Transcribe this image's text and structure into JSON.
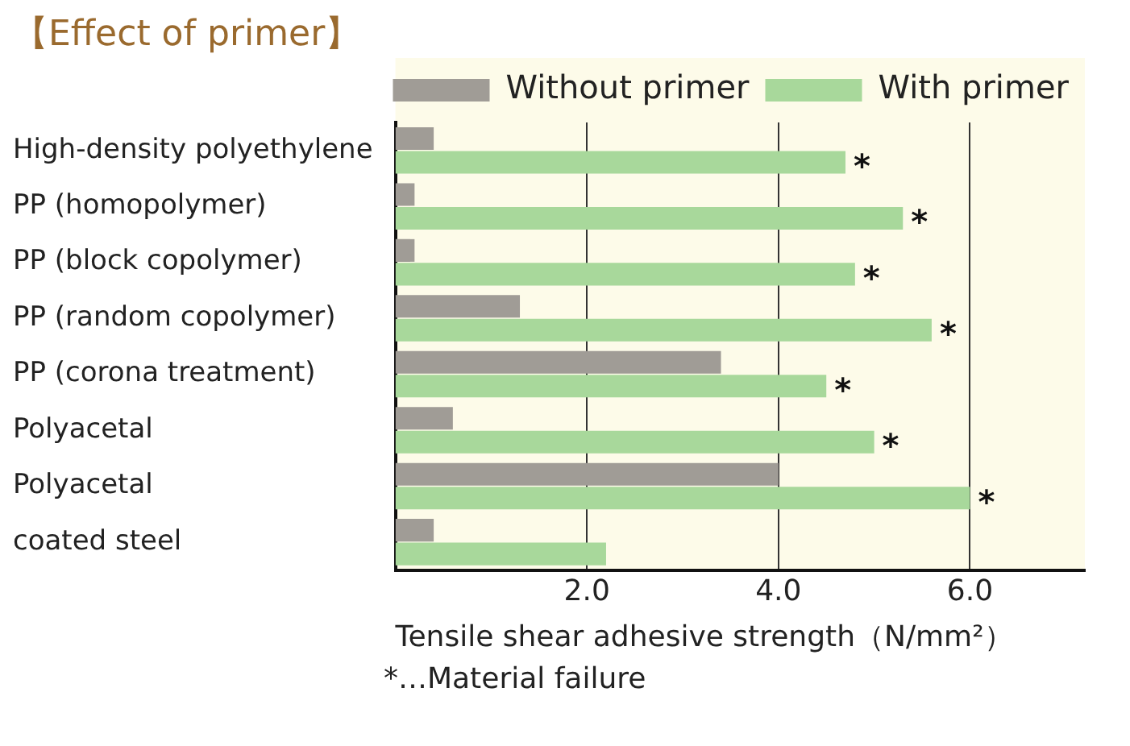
{
  "chart_data": {
    "type": "bar",
    "orientation": "horizontal",
    "title": "【Effect of primer】",
    "xlabel": "Tensile shear adhesive strength（N/mm²）",
    "categories": [
      "High-density polyethylene",
      "PP (homopolymer)",
      "PP (block copolymer)",
      "PP (random copolymer)",
      "PP (corona treatment)",
      "Polyacetal",
      "Polyacetal",
      "coated steel"
    ],
    "series": [
      {
        "name": "Without primer",
        "color": "#a09c96",
        "values": [
          0.4,
          0.2,
          0.2,
          1.3,
          3.4,
          0.6,
          4.0,
          0.4
        ]
      },
      {
        "name": "With primer",
        "color": "#a8d89b",
        "values": [
          4.7,
          5.3,
          4.8,
          5.6,
          4.5,
          5.0,
          6.0,
          2.2
        ]
      }
    ],
    "xlim": [
      0,
      7.2
    ],
    "xticks": [
      {
        "value": 2,
        "label": "2.0"
      },
      {
        "value": 4,
        "label": "4.0"
      },
      {
        "value": 6,
        "label": "6.0"
      }
    ],
    "grid": "x",
    "legend": "top right",
    "annotations": [
      {
        "text": "*",
        "x": 4.7,
        "y": "High-density polyethylene"
      },
      {
        "text": "*",
        "x": 5.3,
        "y": "PP (homopolymer)"
      },
      {
        "text": "*",
        "x": 4.8,
        "y": "PP (block copolymer)"
      },
      {
        "text": "*",
        "x": 5.6,
        "y": "PP (random copolymer)"
      },
      {
        "text": "*",
        "x": 4.5,
        "y": "PP (corona treatment)"
      },
      {
        "text": "*",
        "x": 5.0,
        "y": "Polyacetal"
      },
      {
        "text": "*",
        "x": 6.0
      },
      "*…Material failure"
    ]
  }
}
